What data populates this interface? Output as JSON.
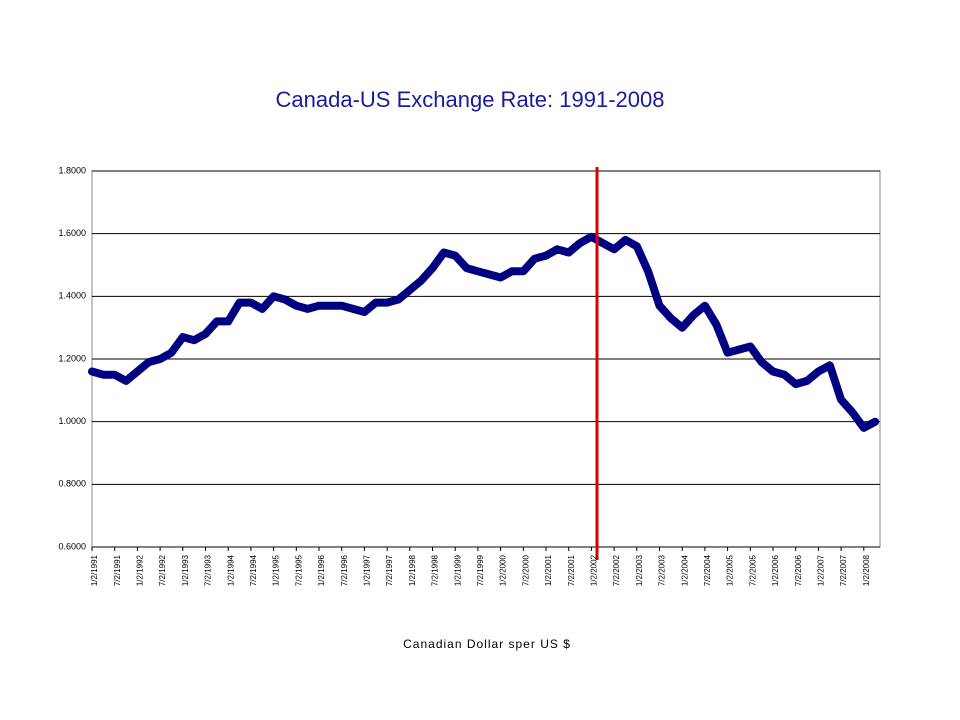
{
  "chart_data": {
    "type": "line",
    "title": "Canada-US Exchange Rate: 1991-2008",
    "x_label": "Canadian Dollar sper US $",
    "categories": [
      "1/2/1991",
      null,
      "7/2/1991",
      null,
      "1/2/1992",
      null,
      "7/2/1992",
      null,
      "1/2/1993",
      null,
      "7/2/1993",
      null,
      "1/2/1994",
      null,
      "7/2/1994",
      null,
      "1/2/1995",
      null,
      "7/2/1995",
      null,
      "1/2/1996",
      null,
      "7/2/1996",
      null,
      "1/2/1997",
      null,
      "7/2/1997",
      null,
      "1/2/1998",
      null,
      "7/2/1998",
      null,
      "1/2/1999",
      null,
      "7/2/1999",
      null,
      "1/2/2000",
      null,
      "7/2/2000",
      null,
      "1/2/2001",
      null,
      "7/2/2001",
      null,
      "1/2/2002",
      null,
      "7/2/2002",
      null,
      "1/2/2003",
      null,
      "7/2/2003",
      null,
      "1/2/2004",
      null,
      "7/2/2004",
      null,
      "1/2/2005",
      null,
      "7/2/2005",
      null,
      "1/2/2006",
      null,
      "7/2/2006",
      null,
      "1/2/2007",
      null,
      "7/2/2007",
      null,
      "1/2/2008",
      null
    ],
    "series": [
      {
        "name": "Canadian Dollar sper US $",
        "color": "#000080",
        "values": [
          1.16,
          1.15,
          1.15,
          1.13,
          1.16,
          1.19,
          1.2,
          1.22,
          1.27,
          1.26,
          1.28,
          1.32,
          1.32,
          1.38,
          1.38,
          1.36,
          1.4,
          1.39,
          1.37,
          1.36,
          1.37,
          1.37,
          1.37,
          1.36,
          1.35,
          1.38,
          1.38,
          1.39,
          1.42,
          1.45,
          1.49,
          1.54,
          1.53,
          1.49,
          1.48,
          1.47,
          1.46,
          1.48,
          1.48,
          1.52,
          1.53,
          1.55,
          1.54,
          1.57,
          1.59,
          1.57,
          1.55,
          1.58,
          1.56,
          1.48,
          1.37,
          1.33,
          1.3,
          1.34,
          1.37,
          1.31,
          1.22,
          1.23,
          1.24,
          1.19,
          1.16,
          1.15,
          1.12,
          1.13,
          1.16,
          1.18,
          1.07,
          1.03,
          0.98,
          1.0
        ]
      }
    ],
    "ylim": [
      0.6,
      1.8
    ],
    "yticks": [
      {
        "value": 0.6,
        "label": "0.6000"
      },
      {
        "value": 0.8,
        "label": "0.8000"
      },
      {
        "value": 1.0,
        "label": "1.0000"
      },
      {
        "value": 1.2,
        "label": "1.2000"
      },
      {
        "value": 1.4,
        "label": "1.4000"
      },
      {
        "value": 1.6,
        "label": "1.6000"
      },
      {
        "value": 1.8,
        "label": "1.8000"
      }
    ],
    "grid": true
  }
}
